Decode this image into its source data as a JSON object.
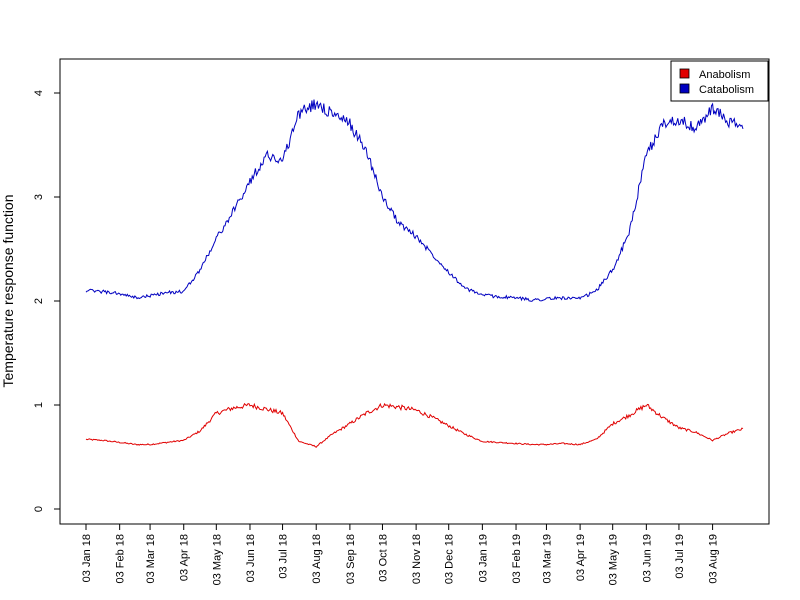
{
  "chart_data": {
    "type": "line",
    "title": "",
    "xlabel": "",
    "ylabel": "Temperature response function",
    "ylim": [
      0,
      4.2
    ],
    "y_ticks": [
      0,
      1,
      2,
      3,
      4
    ],
    "x_tick_labels": [
      "03 Jan 18",
      "03 Feb 18",
      "03 Mar 18",
      "03 Apr 18",
      "03 May 18",
      "03 Jun 18",
      "03 Jul 18",
      "03 Aug 18",
      "03 Sep 18",
      "03 Oct 18",
      "03 Nov 18",
      "03 Dec 18",
      "03 Jan 19",
      "03 Feb 19",
      "03 Mar 19",
      "03 Apr 19",
      "03 May 19",
      "03 Jun 19",
      "03 Jul 19",
      "03 Aug 19"
    ],
    "x": [
      "2018-01-03",
      "2018-01-18",
      "2018-02-03",
      "2018-02-18",
      "2018-03-03",
      "2018-03-18",
      "2018-04-03",
      "2018-04-18",
      "2018-05-03",
      "2018-05-18",
      "2018-06-03",
      "2018-06-18",
      "2018-07-03",
      "2018-07-18",
      "2018-08-03",
      "2018-08-18",
      "2018-09-03",
      "2018-09-18",
      "2018-10-03",
      "2018-10-18",
      "2018-11-03",
      "2018-11-18",
      "2018-12-03",
      "2018-12-18",
      "2019-01-03",
      "2019-01-18",
      "2019-02-03",
      "2019-02-18",
      "2019-03-03",
      "2019-03-18",
      "2019-04-03",
      "2019-04-18",
      "2019-05-03",
      "2019-05-18",
      "2019-06-03",
      "2019-06-18",
      "2019-07-03",
      "2019-07-18",
      "2019-08-03",
      "2019-08-18",
      "2019-08-31"
    ],
    "series": [
      {
        "name": "Anabolism",
        "color": "#e00000",
        "values": [
          0.67,
          0.66,
          0.64,
          0.62,
          0.62,
          0.64,
          0.66,
          0.75,
          0.92,
          0.97,
          1.0,
          0.96,
          0.92,
          0.65,
          0.6,
          0.72,
          0.82,
          0.92,
          1.0,
          0.98,
          0.95,
          0.88,
          0.8,
          0.72,
          0.65,
          0.64,
          0.63,
          0.62,
          0.62,
          0.63,
          0.62,
          0.67,
          0.82,
          0.9,
          1.0,
          0.88,
          0.78,
          0.74,
          0.66,
          0.73,
          0.77
        ]
      },
      {
        "name": "Catabolism",
        "color": "#0000c0",
        "values": [
          2.1,
          2.09,
          2.07,
          2.03,
          2.05,
          2.08,
          2.09,
          2.3,
          2.6,
          2.85,
          3.15,
          3.4,
          3.35,
          3.8,
          3.9,
          3.8,
          3.7,
          3.45,
          3.0,
          2.75,
          2.62,
          2.45,
          2.28,
          2.12,
          2.06,
          2.04,
          2.03,
          2.01,
          2.02,
          2.03,
          2.02,
          2.1,
          2.3,
          2.65,
          3.4,
          3.7,
          3.75,
          3.65,
          3.85,
          3.72,
          3.67
        ]
      }
    ],
    "legend_position": "top-right",
    "grid": false
  }
}
